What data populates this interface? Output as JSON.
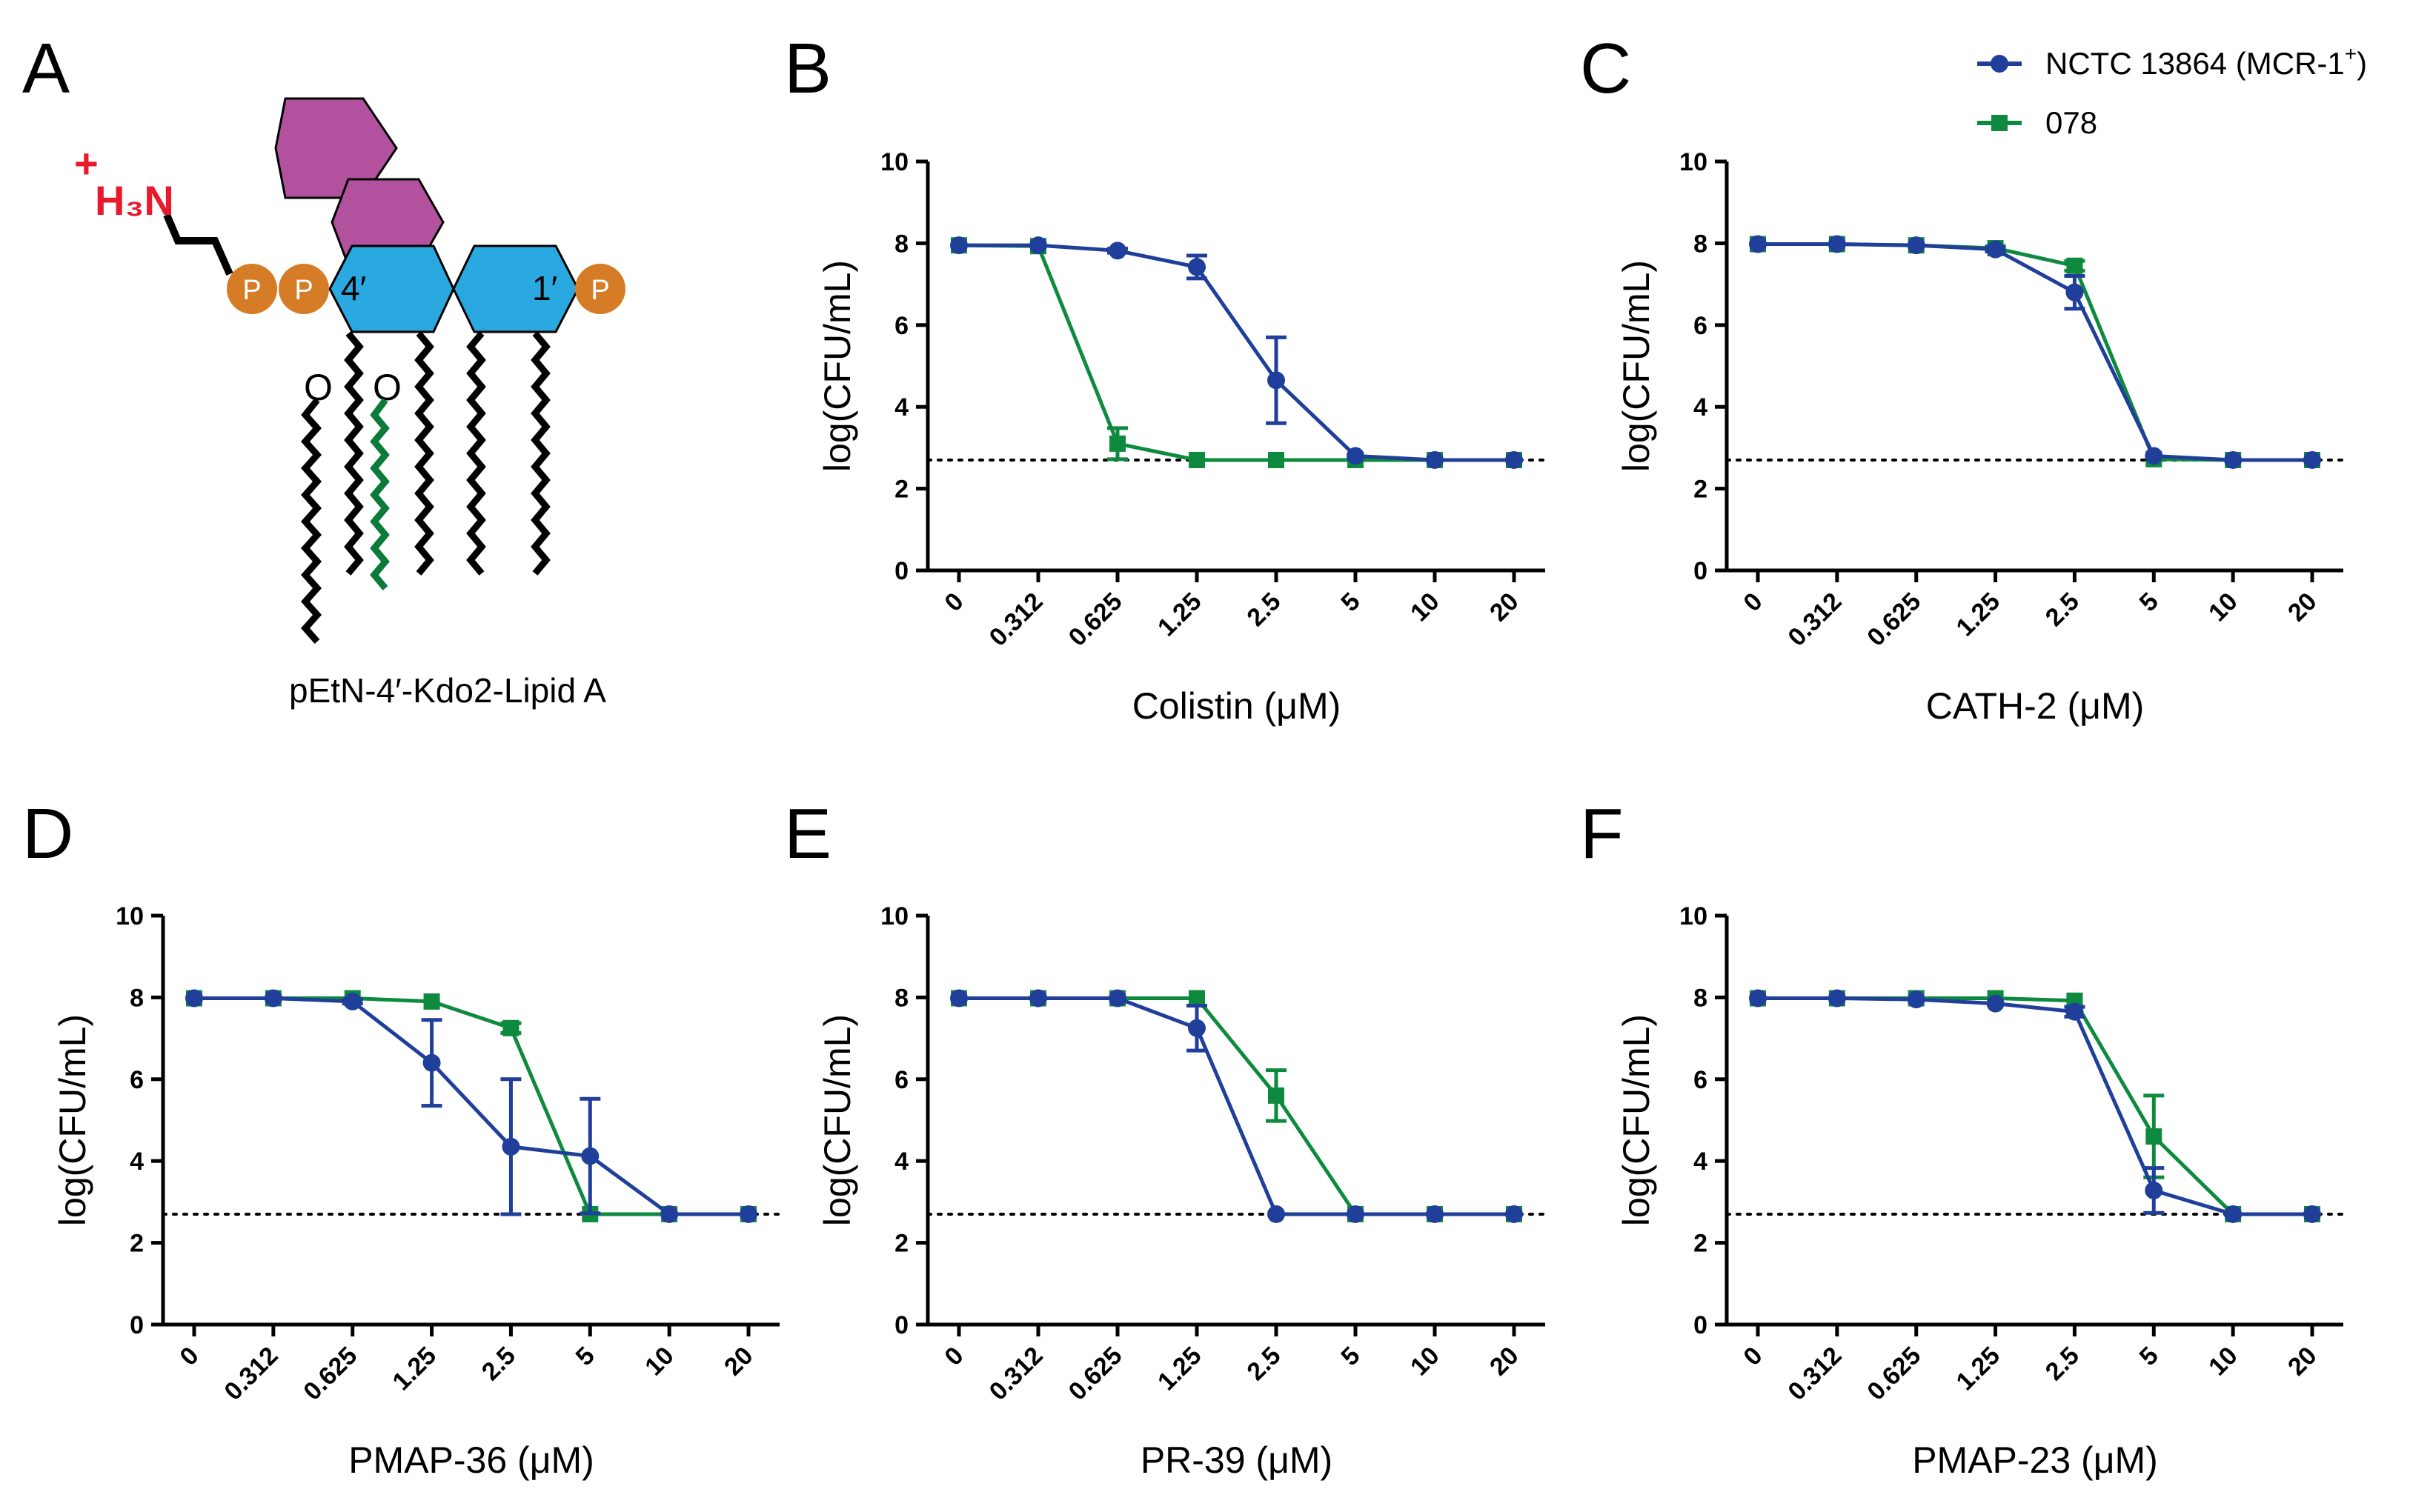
{
  "panel_letters": [
    "A",
    "B",
    "C",
    "D",
    "E",
    "F"
  ],
  "structure": {
    "caption": "pEtN-4′-Kdo2-Lipid A",
    "amine_label": "H₃N",
    "charge": "+",
    "phosphate_label": "P",
    "o_label": "O",
    "position_4": "4′",
    "position_1": "1′",
    "colors": {
      "kdo": "#b2529f",
      "glucosamine": "#29a9e0",
      "phosphate": "#d77c26",
      "amine": "#e8192c",
      "extra_chain": "#0b7a3b"
    }
  },
  "legend": {
    "series1_label": "NCTC 13864 (MCR-1",
    "series1_sup": "+",
    "series1_close": ")",
    "series2_label": "078"
  },
  "chart_data": [
    {
      "panel": "B",
      "type": "line",
      "xlabel": "Colistin (μM)",
      "ylabel": "log(CFU/mL)",
      "categories": [
        "0",
        "0.312",
        "0.625",
        "1.25",
        "2.5",
        "5",
        "10",
        "20"
      ],
      "ylim": [
        0,
        10
      ],
      "yticks": [
        0,
        2,
        4,
        6,
        8,
        10
      ],
      "detection_limit": 2.7,
      "series": [
        {
          "name": "NCTC 13864 (MCR-1+)",
          "color": "#1f3f9a",
          "marker": "circle",
          "values": [
            7.95,
            7.95,
            7.82,
            7.42,
            4.65,
            2.8,
            2.7,
            2.7
          ],
          "errors": [
            0,
            0,
            0.05,
            0.28,
            1.05,
            0,
            0,
            0
          ]
        },
        {
          "name": "078",
          "color": "#0e8a3e",
          "marker": "square",
          "values": [
            7.95,
            7.93,
            3.1,
            2.7,
            2.7,
            2.7,
            2.7,
            2.7
          ],
          "errors": [
            0,
            0,
            0.38,
            0,
            0,
            0,
            0,
            0
          ]
        }
      ]
    },
    {
      "panel": "C",
      "type": "line",
      "xlabel": "CATH-2  (μM)",
      "ylabel": "log(CFU/mL)",
      "categories": [
        "0",
        "0.312",
        "0.625",
        "1.25",
        "2.5",
        "5",
        "10",
        "20"
      ],
      "ylim": [
        0,
        10
      ],
      "yticks": [
        0,
        2,
        4,
        6,
        8,
        10
      ],
      "detection_limit": 2.7,
      "series": [
        {
          "name": "NCTC 13864 (MCR-1+)",
          "color": "#1f3f9a",
          "marker": "circle",
          "values": [
            7.98,
            7.98,
            7.95,
            7.85,
            6.8,
            2.8,
            2.7,
            2.7
          ],
          "errors": [
            0,
            0,
            0,
            0.05,
            0.4,
            0,
            0,
            0
          ]
        },
        {
          "name": "078",
          "color": "#0e8a3e",
          "marker": "square",
          "values": [
            7.98,
            7.98,
            7.95,
            7.88,
            7.45,
            2.72,
            2.7,
            2.7
          ],
          "errors": [
            0,
            0,
            0,
            0.05,
            0.12,
            0,
            0,
            0
          ]
        }
      ]
    },
    {
      "panel": "D",
      "type": "line",
      "xlabel": "PMAP-36 (μM)",
      "ylabel": "log(CFU/mL)",
      "categories": [
        "0",
        "0.312",
        "0.625",
        "1.25",
        "2.5",
        "5",
        "10",
        "20"
      ],
      "ylim": [
        0,
        10
      ],
      "yticks": [
        0,
        2,
        4,
        6,
        8,
        10
      ],
      "detection_limit": 2.7,
      "series": [
        {
          "name": "NCTC 13864 (MCR-1+)",
          "color": "#1f3f9a",
          "marker": "circle",
          "values": [
            7.98,
            7.98,
            7.9,
            6.4,
            4.35,
            4.12,
            2.7,
            2.7
          ],
          "errors": [
            0,
            0,
            0.05,
            1.05,
            1.65,
            1.4,
            0,
            0
          ]
        },
        {
          "name": "078",
          "color": "#0e8a3e",
          "marker": "square",
          "values": [
            7.98,
            7.98,
            7.98,
            7.9,
            7.25,
            2.7,
            2.7,
            2.7
          ],
          "errors": [
            0,
            0,
            0,
            0,
            0.12,
            0,
            0,
            0
          ]
        }
      ]
    },
    {
      "panel": "E",
      "type": "line",
      "xlabel": "PR-39 (μM)",
      "ylabel": "log(CFU/mL)",
      "categories": [
        "0",
        "0.312",
        "0.625",
        "1.25",
        "2.5",
        "5",
        "10",
        "20"
      ],
      "ylim": [
        0,
        10
      ],
      "yticks": [
        0,
        2,
        4,
        6,
        8,
        10
      ],
      "detection_limit": 2.7,
      "series": [
        {
          "name": "NCTC 13864 (MCR-1+)",
          "color": "#1f3f9a",
          "marker": "circle",
          "values": [
            7.98,
            7.98,
            7.98,
            7.25,
            2.7,
            2.7,
            2.7,
            2.7
          ],
          "errors": [
            0,
            0,
            0,
            0.55,
            0,
            0,
            0,
            0
          ]
        },
        {
          "name": "078",
          "color": "#0e8a3e",
          "marker": "square",
          "values": [
            7.98,
            7.98,
            7.98,
            7.98,
            5.6,
            2.7,
            2.7,
            2.7
          ],
          "errors": [
            0,
            0,
            0,
            0,
            0.62,
            0,
            0,
            0
          ]
        }
      ]
    },
    {
      "panel": "F",
      "type": "line",
      "xlabel": "PMAP-23 (μM)",
      "ylabel": "log(CFU/mL)",
      "categories": [
        "0",
        "0.312",
        "0.625",
        "1.25",
        "2.5",
        "5",
        "10",
        "20"
      ],
      "ylim": [
        0,
        10
      ],
      "yticks": [
        0,
        2,
        4,
        6,
        8,
        10
      ],
      "detection_limit": 2.7,
      "series": [
        {
          "name": "NCTC 13864 (MCR-1+)",
          "color": "#1f3f9a",
          "marker": "circle",
          "values": [
            7.98,
            7.98,
            7.95,
            7.85,
            7.65,
            3.28,
            2.7,
            2.7
          ],
          "errors": [
            0,
            0,
            0,
            0,
            0.12,
            0.55,
            0,
            0
          ]
        },
        {
          "name": "078",
          "color": "#0e8a3e",
          "marker": "square",
          "values": [
            7.98,
            7.98,
            7.98,
            7.98,
            7.92,
            4.6,
            2.7,
            2.7
          ],
          "errors": [
            0,
            0,
            0,
            0,
            0,
            1.0,
            0,
            0
          ]
        }
      ]
    }
  ]
}
